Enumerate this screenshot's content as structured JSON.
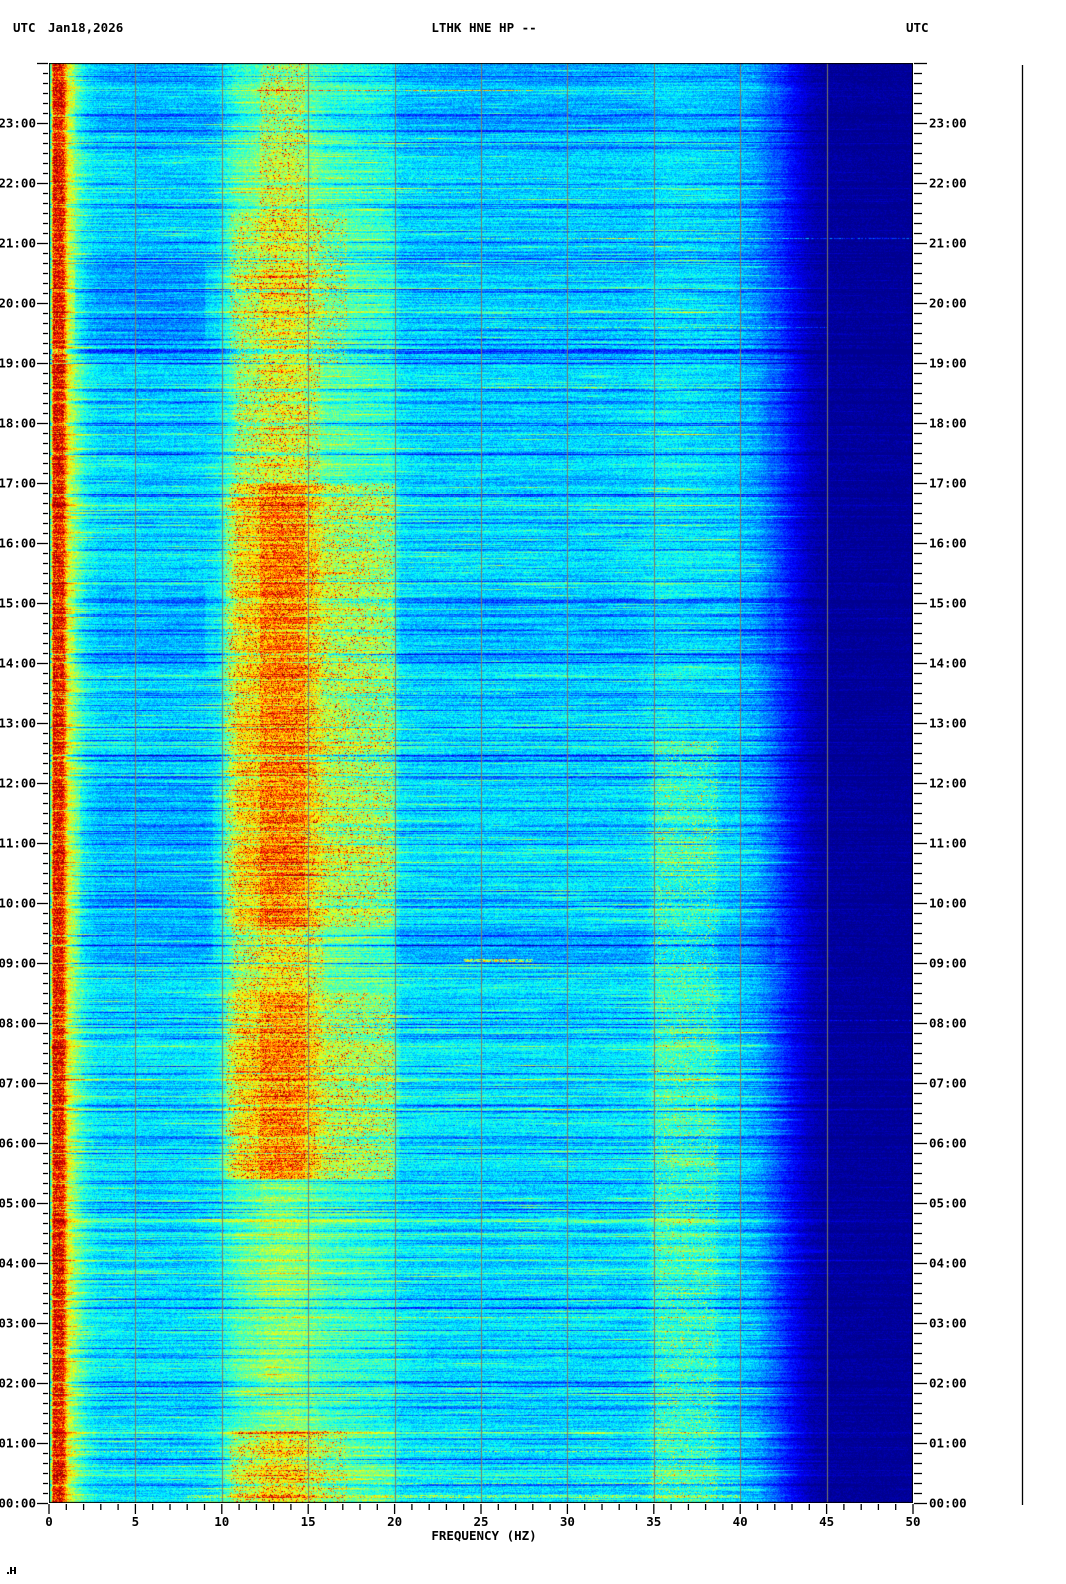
{
  "header": {
    "left_utc": "UTC",
    "date": "Jan18,2026",
    "title": "LTHK HNE HP --",
    "right_utc": "UTC"
  },
  "chart_data": {
    "type": "heatmap",
    "variant": "24-hour seismic station spectrogram, time increasing bottom-to-top",
    "title": "LTHK HNE HP --",
    "xlabel": "FREQUENCY (HZ)",
    "y_axis_unit_label": "UTC",
    "xlim": [
      0,
      50
    ],
    "x_major_ticks": [
      0,
      5,
      10,
      15,
      20,
      25,
      30,
      35,
      40,
      45,
      50
    ],
    "x_minor_step_hz": 1,
    "ylim_hours": [
      0,
      24
    ],
    "y_minor_step_minutes": 10,
    "y_hour_labels": [
      "00:00",
      "01:00",
      "02:00",
      "03:00",
      "04:00",
      "05:00",
      "06:00",
      "07:00",
      "08:00",
      "09:00",
      "10:00",
      "11:00",
      "12:00",
      "13:00",
      "14:00",
      "15:00",
      "16:00",
      "17:00",
      "18:00",
      "19:00",
      "20:00",
      "21:00",
      "22:00",
      "23:00"
    ],
    "colormap": "jet",
    "appearance": {
      "background": "#ffffff",
      "grid_color": "#7d7d69",
      "axis_color": "#000000",
      "gridlines_every_hz": 5,
      "right_scale_line_x": 1022
    },
    "features": [
      "Saturated red microseism noise stripe at ~0.2-0.9 Hz along left edge for the full 24 h",
      "Broad noise band 10-20 Hz, strongest ~05:30-17:00, orange/red speckled core at 12-15 Hz, sharp cutoff at 20 Hz",
      "Narrow secondary noise band near 35-38 Hz, mainly 00:00-12:00",
      "Energy roll-off above ~41 Hz; 45-50 Hz uniformly dark navy",
      "Many thin dark-blue quiet rows; widest quiet band near 19:10",
      "Sporadic bright broadband transient rows, e.g. ~00:50, ~21:05, ~23:35"
    ],
    "render": {
      "seed": 1337,
      "freq_profile": [
        [
          0,
          0.3
        ],
        [
          0.15,
          0.55
        ],
        [
          0.25,
          0.88
        ],
        [
          0.8,
          0.88
        ],
        [
          1.1,
          0.62
        ],
        [
          1.6,
          0.5
        ],
        [
          2.2,
          0.4
        ],
        [
          3,
          0.355
        ],
        [
          6,
          0.345
        ],
        [
          9,
          0.35
        ],
        [
          10.5,
          0.4
        ],
        [
          12,
          0.44
        ],
        [
          13.5,
          0.46
        ],
        [
          15,
          0.44
        ],
        [
          17,
          0.41
        ],
        [
          19,
          0.385
        ],
        [
          20,
          0.37
        ],
        [
          21,
          0.355
        ],
        [
          25,
          0.345
        ],
        [
          30,
          0.345
        ],
        [
          34,
          0.35
        ],
        [
          35.5,
          0.375
        ],
        [
          36.5,
          0.375
        ],
        [
          38,
          0.36
        ],
        [
          39.5,
          0.345
        ],
        [
          41,
          0.3
        ],
        [
          42,
          0.22
        ],
        [
          43,
          0.13
        ],
        [
          44,
          0.06
        ],
        [
          45,
          0.03
        ],
        [
          50,
          0.02
        ]
      ],
      "band_shape": [
        [
          9.8,
          0
        ],
        [
          11,
          1
        ],
        [
          15.3,
          1
        ],
        [
          16,
          0.6
        ],
        [
          19.8,
          0.55
        ],
        [
          20.4,
          0
        ]
      ],
      "band_core": {
        "fmin": 12.2,
        "fmax": 14.8,
        "boost": 1.35
      },
      "band_periods": [
        [
          0,
          1.2,
          0.12
        ],
        [
          1.2,
          5.4,
          0.04
        ],
        [
          5.4,
          8.5,
          0.2
        ],
        [
          8.5,
          9.6,
          0.11
        ],
        [
          9.6,
          17.0,
          0.21
        ],
        [
          17.0,
          19.0,
          0.09
        ],
        [
          19.0,
          21.5,
          0.12
        ],
        [
          21.5,
          24.0,
          0.07
        ]
      ],
      "hf_band": {
        "f0": 34.6,
        "f1": 35.2,
        "f2": 38.4,
        "f3": 39.0,
        "amp": 0.045,
        "tmax": 12.7
      },
      "dark_rows": [
        [
          19.2,
          2,
          0.18
        ],
        [
          18.35,
          1,
          0.12
        ],
        [
          16.8,
          1,
          0.09
        ],
        [
          15.05,
          1,
          0.13
        ],
        [
          14.8,
          1,
          0.11
        ],
        [
          14.55,
          1,
          0.13
        ],
        [
          14.15,
          1,
          0.09
        ],
        [
          13.7,
          1,
          0.11
        ],
        [
          12.45,
          2,
          0.15
        ],
        [
          12.1,
          1,
          0.09
        ],
        [
          10.05,
          1,
          0.13
        ],
        [
          9.3,
          1,
          0.09
        ],
        [
          6.1,
          1,
          0.11
        ],
        [
          2.45,
          1,
          0.1
        ],
        [
          1.6,
          1,
          0.09
        ],
        [
          23.1,
          1,
          0.11
        ],
        [
          22.6,
          1,
          0.09
        ],
        [
          21.6,
          1,
          0.09
        ],
        [
          20.8,
          1,
          0.09
        ],
        [
          4.55,
          1,
          0.08
        ],
        [
          7.8,
          1,
          0.08
        ],
        [
          11.3,
          1,
          0.08
        ],
        [
          17.5,
          1,
          0.09
        ],
        [
          3.4,
          1,
          0.08
        ],
        [
          0.75,
          1,
          0.09
        ]
      ],
      "bright_rows": [
        [
          0.87,
          1,
          40,
          0.2,
          1
        ],
        [
          23.55,
          12,
          28,
          0.22,
          1
        ],
        [
          21.08,
          24,
          50,
          0.16,
          1
        ],
        [
          9.05,
          24,
          28,
          0.26,
          2
        ],
        [
          3.1,
          8,
          40,
          0.12,
          1
        ],
        [
          0.33,
          18,
          40,
          0.16,
          1
        ],
        [
          0.42,
          10,
          40,
          0.14,
          1
        ],
        [
          22.08,
          10,
          30,
          0.16,
          1
        ],
        [
          21.85,
          8,
          25,
          0.12,
          1
        ],
        [
          19.6,
          25,
          45,
          0.12,
          1
        ],
        [
          13.5,
          20,
          27,
          0.16,
          1
        ],
        [
          10.75,
          33,
          39,
          0.14,
          1
        ],
        [
          6.3,
          20,
          30,
          0.12,
          1
        ],
        [
          15.6,
          20,
          26,
          0.12,
          1
        ],
        [
          18.6,
          25,
          32,
          0.1,
          1
        ],
        [
          2.1,
          10,
          20,
          0.1,
          1
        ],
        [
          4.1,
          10,
          16,
          0.08,
          1
        ],
        [
          8.05,
          0,
          50,
          0.1,
          1
        ],
        [
          16.3,
          35,
          38,
          0.12,
          1
        ],
        [
          11.9,
          25,
          30,
          0.1,
          1
        ],
        [
          0.12,
          8,
          40,
          0.14,
          2
        ]
      ],
      "patches": [
        [
          9.0,
          12.0,
          1.8,
          9.5,
          0.045
        ],
        [
          19.3,
          20.7,
          1.5,
          9.0,
          0.05
        ],
        [
          13.9,
          15.3,
          1.5,
          9.0,
          0.04
        ],
        [
          22.8,
          24.0,
          1.5,
          40,
          0.03
        ],
        [
          14.0,
          15.2,
          20,
          42,
          0.03
        ],
        [
          9.0,
          9.6,
          20,
          42,
          0.05
        ]
      ],
      "evening_tint": {
        "after_hour": 17,
        "offset": -0.018
      }
    }
  }
}
